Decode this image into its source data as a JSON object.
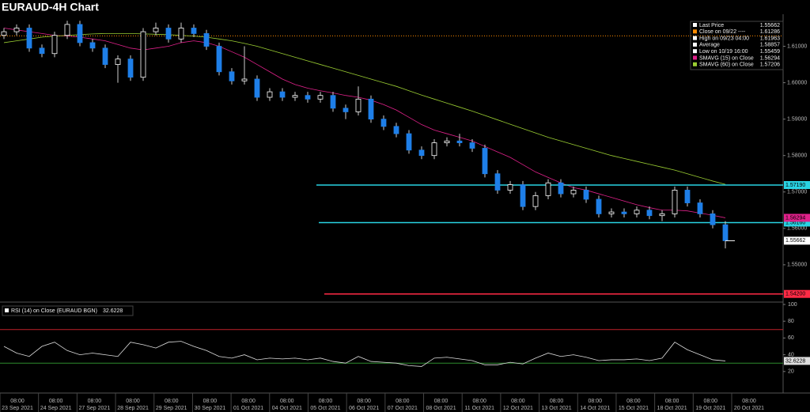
{
  "chart_data": {
    "type": "candlestick",
    "title": "EURAUD-4H Chart",
    "open": [
      1.613,
      1.614,
      1.615,
      1.6095,
      1.608,
      1.613,
      1.616,
      1.611,
      1.6095,
      1.605,
      1.6065,
      1.6015,
      1.614,
      1.615,
      1.612,
      1.615,
      1.6135,
      1.61,
      1.603,
      1.6005,
      1.601,
      1.596,
      1.5975,
      1.596,
      1.5965,
      1.5955,
      1.5965,
      1.593,
      1.592,
      1.5955,
      1.59,
      1.588,
      1.586,
      1.5815,
      1.58,
      1.5835,
      1.584,
      1.5835,
      1.582,
      1.575,
      1.5705,
      1.572,
      1.566,
      1.569,
      1.5725,
      1.5695,
      1.5705,
      1.568,
      1.564,
      1.5645,
      1.564,
      1.565,
      1.5635,
      1.564,
      1.5705,
      1.567,
      1.564,
      1.561
    ],
    "high": [
      1.615,
      1.616,
      1.616,
      1.6105,
      1.614,
      1.617,
      1.617,
      1.612,
      1.6105,
      1.6075,
      1.6075,
      1.615,
      1.6165,
      1.616,
      1.6165,
      1.616,
      1.6145,
      1.611,
      1.604,
      1.61,
      1.602,
      1.5985,
      1.5985,
      1.5975,
      1.5975,
      1.5975,
      1.5975,
      1.594,
      1.599,
      1.5965,
      1.591,
      1.589,
      1.587,
      1.5825,
      1.5845,
      1.585,
      1.586,
      1.5845,
      1.583,
      1.576,
      1.573,
      1.573,
      1.57,
      1.5735,
      1.5735,
      1.5715,
      1.5715,
      1.569,
      1.5655,
      1.5655,
      1.566,
      1.566,
      1.565,
      1.5715,
      1.5715,
      1.568,
      1.565,
      1.562
    ],
    "low": [
      1.612,
      1.613,
      1.6085,
      1.607,
      1.607,
      1.612,
      1.61,
      1.6085,
      1.604,
      1.6,
      1.6005,
      1.6005,
      1.613,
      1.611,
      1.611,
      1.6125,
      1.609,
      1.602,
      1.5995,
      1.5995,
      1.595,
      1.595,
      1.595,
      1.595,
      1.5945,
      1.5945,
      1.592,
      1.59,
      1.591,
      1.589,
      1.587,
      1.585,
      1.5805,
      1.579,
      1.579,
      1.5825,
      1.5825,
      1.581,
      1.574,
      1.5695,
      1.5695,
      1.565,
      1.565,
      1.568,
      1.5685,
      1.5685,
      1.567,
      1.563,
      1.563,
      1.563,
      1.563,
      1.5625,
      1.562,
      1.563,
      1.566,
      1.563,
      1.56,
      1.5545
    ],
    "close": [
      1.614,
      1.615,
      1.6095,
      1.608,
      1.613,
      1.616,
      1.611,
      1.6095,
      1.605,
      1.6065,
      1.6015,
      1.614,
      1.615,
      1.612,
      1.615,
      1.6135,
      1.61,
      1.603,
      1.6005,
      1.601,
      1.596,
      1.5975,
      1.596,
      1.5965,
      1.5955,
      1.5965,
      1.593,
      1.592,
      1.5955,
      1.59,
      1.588,
      1.586,
      1.5815,
      1.58,
      1.5835,
      1.584,
      1.5835,
      1.582,
      1.575,
      1.5705,
      1.572,
      1.566,
      1.569,
      1.5725,
      1.5695,
      1.5705,
      1.568,
      1.564,
      1.5645,
      1.564,
      1.565,
      1.5635,
      1.564,
      1.5705,
      1.567,
      1.564,
      1.561,
      1.5566
    ],
    "up_color": "#ffffff",
    "down_color": "#1e7fe8",
    "ylim": [
      1.5402,
      1.6188
    ],
    "yticks": [
      {
        "value": 1.61,
        "label": "1.61000"
      },
      {
        "value": 1.6,
        "label": "1.60000"
      },
      {
        "value": 1.59,
        "label": "1.59000"
      },
      {
        "value": 1.58,
        "label": "1.58000"
      },
      {
        "value": 1.57,
        "label": "1.57000"
      },
      {
        "value": 1.56,
        "label": "1.56000"
      },
      {
        "value": 1.55,
        "label": "1.55000"
      }
    ],
    "series": [
      {
        "name": "SMAVG (15)  on Close",
        "color": "#e0218a",
        "last_label": "1.56294",
        "values": [
          1.615,
          1.6145,
          1.614,
          1.6135,
          1.613,
          1.6128,
          1.6125,
          1.612,
          1.6115,
          1.6105,
          1.6095,
          1.609,
          1.6095,
          1.61,
          1.611,
          1.6115,
          1.611,
          1.61,
          1.6085,
          1.607,
          1.605,
          1.603,
          1.601,
          1.5995,
          1.5985,
          1.5978,
          1.5972,
          1.5965,
          1.596,
          1.5952,
          1.594,
          1.5925,
          1.5905,
          1.5885,
          1.587,
          1.586,
          1.585,
          1.584,
          1.5825,
          1.581,
          1.5795,
          1.5775,
          1.5755,
          1.574,
          1.5725,
          1.5712,
          1.5705,
          1.5695,
          1.5685,
          1.5675,
          1.5665,
          1.5657,
          1.565,
          1.565,
          1.5648,
          1.5642,
          1.5636,
          1.5629
        ]
      },
      {
        "name": "SMAVG (60)  on Close",
        "color": "#9acd32",
        "last_label": "1.57206",
        "values": [
          1.611,
          1.6115,
          1.612,
          1.6125,
          1.6128,
          1.613,
          1.6132,
          1.6134,
          1.6135,
          1.6135,
          1.6135,
          1.6134,
          1.6133,
          1.6132,
          1.613,
          1.6128,
          1.6125,
          1.612,
          1.6115,
          1.6108,
          1.61,
          1.609,
          1.608,
          1.607,
          1.606,
          1.605,
          1.604,
          1.603,
          1.602,
          1.601,
          1.6,
          1.599,
          1.5978,
          1.5966,
          1.5955,
          1.5944,
          1.5933,
          1.5922,
          1.591,
          1.5898,
          1.5886,
          1.5874,
          1.5862,
          1.585,
          1.584,
          1.583,
          1.582,
          1.581,
          1.58,
          1.5792,
          1.5784,
          1.5776,
          1.5768,
          1.576,
          1.575,
          1.574,
          1.573,
          1.5721
        ]
      }
    ],
    "legend": [
      {
        "name": "Last Price",
        "value": 1.55662,
        "label": "1.55662",
        "color": "#ffffff"
      },
      {
        "name": "Close on 09/22 ----",
        "value": 1.61286,
        "label": "1.61286",
        "color": "#ff8c00"
      },
      {
        "name": "High on 09/23 04:00",
        "value": 1.61963,
        "label": "1.61963",
        "color": "#ffffff"
      },
      {
        "name": "Average",
        "value": 1.58857,
        "label": "1.58857",
        "color": "#ffffff"
      },
      {
        "name": "Low on 10/19 16:00",
        "value": 1.55459,
        "label": "1.55459",
        "color": "#ffffff"
      }
    ],
    "levels": [
      {
        "value": 1.5719,
        "label": "1.57190",
        "color": "#29d3e3"
      },
      {
        "value": 1.5616,
        "label": "1.56160",
        "color": "#29d3e3"
      },
      {
        "value": 1.542,
        "label": "1.54200",
        "color": "#ff2a45"
      }
    ],
    "x_labels": [
      {
        "time": "08:00",
        "date": "23 Sep 2021"
      },
      {
        "time": "08:00",
        "date": "24 Sep 2021"
      },
      {
        "time": "08:00",
        "date": "27 Sep 2021"
      },
      {
        "time": "08:00",
        "date": "28 Sep 2021"
      },
      {
        "time": "08:00",
        "date": "29 Sep 2021"
      },
      {
        "time": "08:00",
        "date": "30 Sep 2021"
      },
      {
        "time": "08:00",
        "date": "01 Oct 2021"
      },
      {
        "time": "08:00",
        "date": "04 Oct 2021"
      },
      {
        "time": "08:00",
        "date": "05 Oct 2021"
      },
      {
        "time": "08:00",
        "date": "06 Oct 2021"
      },
      {
        "time": "08:00",
        "date": "07 Oct 2021"
      },
      {
        "time": "08:00",
        "date": "08 Oct 2021"
      },
      {
        "time": "08:00",
        "date": "11 Oct 2021"
      },
      {
        "time": "08:00",
        "date": "12 Oct 2021"
      },
      {
        "time": "08:00",
        "date": "13 Oct 2021"
      },
      {
        "time": "08:00",
        "date": "14 Oct 2021"
      },
      {
        "time": "08:00",
        "date": "15 Oct 2021"
      },
      {
        "time": "08:00",
        "date": "18 Oct 2021"
      },
      {
        "time": "08:00",
        "date": "19 Oct 2021"
      },
      {
        "time": "08:00",
        "date": "20 Oct 2021"
      }
    ],
    "rsi": {
      "title": "RSI (14)  on Close (EURAUD BGN)",
      "last_label": "32.6228",
      "color": "#dddddd",
      "ylim": [
        0,
        110
      ],
      "yticks": [
        20,
        40,
        60,
        80,
        100
      ],
      "levels": [
        {
          "value": 70,
          "color": "#c0202a"
        },
        {
          "value": 30,
          "color": "#2e8b2e"
        }
      ],
      "values": [
        50,
        42,
        38,
        50,
        55,
        45,
        40,
        42,
        40,
        38,
        55,
        52,
        48,
        55,
        56,
        50,
        45,
        38,
        36,
        40,
        34,
        36,
        35,
        36,
        34,
        36,
        32,
        30,
        38,
        32,
        31,
        30,
        27,
        26,
        36,
        37,
        35,
        33,
        28,
        28,
        31,
        29,
        36,
        42,
        38,
        40,
        37,
        33,
        34,
        34,
        35,
        33,
        36,
        55,
        46,
        40,
        34,
        32.6228
      ]
    }
  }
}
